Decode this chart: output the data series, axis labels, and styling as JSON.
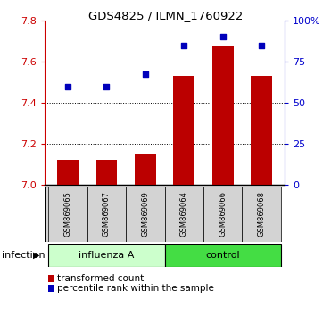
{
  "title": "GDS4825 / ILMN_1760922",
  "samples": [
    "GSM869065",
    "GSM869067",
    "GSM869069",
    "GSM869064",
    "GSM869066",
    "GSM869068"
  ],
  "bar_values": [
    7.12,
    7.12,
    7.15,
    7.53,
    7.68,
    7.53
  ],
  "scatter_values": [
    7.48,
    7.48,
    7.54,
    7.68,
    7.72,
    7.68
  ],
  "bar_color": "#bb0000",
  "scatter_color": "#0000bb",
  "ymin": 7.0,
  "ymax": 7.8,
  "yticks_left": [
    7.0,
    7.2,
    7.4,
    7.6,
    7.8
  ],
  "yticks_right": [
    0,
    25,
    50,
    75,
    100
  ],
  "left_axis_color": "#cc0000",
  "right_axis_color": "#0000cc",
  "legend_items": [
    "transformed count",
    "percentile rank within the sample"
  ],
  "infection_label": "infection",
  "label_area_color": "#d3d3d3",
  "influenza_color": "#ccffcc",
  "control_color": "#44dd44",
  "background_color": "#ffffff",
  "grid_lines": [
    7.2,
    7.4,
    7.6
  ],
  "bar_width": 0.55
}
